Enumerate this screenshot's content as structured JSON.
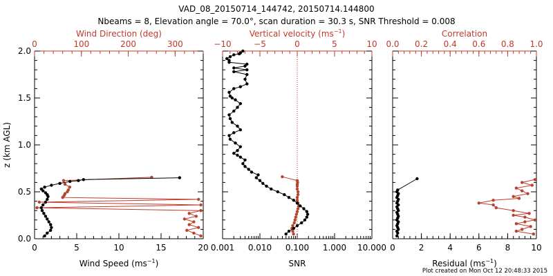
{
  "header": {
    "title": "VAD_08_20150714_144742, 20150714.144800",
    "subtitle": "Nbeams = 8, Elevation angle = 70.0°, scan duration = 30.3 s, SNR Threshold = 0.008"
  },
  "footer": {
    "note": "Plot created on Mon Oct 12 20:48:33 2015"
  },
  "colors": {
    "black": "#000000",
    "red": "#c0392b",
    "marker_red": "#b5452f"
  },
  "chart_data": [
    {
      "id": "panel-wind",
      "type": "line",
      "ylabel": "z (km AGL)",
      "ylim": [
        0,
        2.0
      ],
      "yticks": [
        0.0,
        0.5,
        1.0,
        1.5,
        2.0
      ],
      "yticklabels": [
        "0.0",
        "0.5",
        "1.0",
        "1.5",
        "2.0"
      ],
      "xlabel_prefix": "Wind Speed (ms",
      "xlabel_sup": "−1",
      "xlabel_suffix": ")",
      "xlim": [
        0,
        20
      ],
      "xticks": [
        0,
        5,
        10,
        15,
        20
      ],
      "xticklabels": [
        "0",
        "5",
        "10",
        "15",
        "20"
      ],
      "x2label": "Wind Direction (deg)",
      "x2lim": [
        0,
        360
      ],
      "x2ticks": [
        0,
        100,
        200,
        300
      ],
      "x2ticklabels": [
        "0",
        "100",
        "200",
        "300"
      ],
      "series": [
        {
          "name": "Wind Speed",
          "axis": "bottom",
          "color": "#000000",
          "x": [
            1.2,
            1.5,
            1.9,
            2.0,
            1.9,
            1.7,
            1.5,
            1.3,
            1.1,
            0.9,
            0.8,
            1.0,
            1.3,
            1.5,
            1.6,
            1.5,
            1.3,
            1.0,
            0.8,
            1.2,
            2.0,
            3.0,
            4.2,
            5.2,
            5.8,
            17.2
          ],
          "y": [
            0.03,
            0.06,
            0.09,
            0.12,
            0.15,
            0.18,
            0.21,
            0.24,
            0.27,
            0.3,
            0.33,
            0.36,
            0.39,
            0.42,
            0.45,
            0.47,
            0.49,
            0.51,
            0.53,
            0.55,
            0.57,
            0.59,
            0.61,
            0.62,
            0.63,
            0.65
          ]
        },
        {
          "name": "Wind Direction",
          "axis": "top",
          "color": "#c0392b",
          "x": [
            355,
            340,
            325,
            350,
            330,
            340,
            320,
            345,
            330,
            355,
            5,
            355,
            10,
            350,
            60,
            63,
            65,
            70,
            72,
            75,
            65,
            62,
            250
          ],
          "y": [
            0.03,
            0.06,
            0.09,
            0.12,
            0.15,
            0.18,
            0.21,
            0.24,
            0.27,
            0.3,
            0.33,
            0.36,
            0.39,
            0.42,
            0.44,
            0.46,
            0.48,
            0.5,
            0.52,
            0.55,
            0.58,
            0.62,
            0.655
          ]
        }
      ]
    },
    {
      "id": "panel-snr",
      "type": "line",
      "xscale": "log",
      "ylim": [
        0,
        2.0
      ],
      "yticks": [
        0.0,
        0.5,
        1.0,
        1.5,
        2.0
      ],
      "xlabel_prefix": "SNR",
      "xlabel_sup": "",
      "xlabel_suffix": "",
      "xlim": [
        0.001,
        10
      ],
      "xticks": [
        0.001,
        0.01,
        0.1,
        1,
        10
      ],
      "xticklabels": [
        "0.001",
        "0.010",
        "0.100",
        "1.000",
        "10.000"
      ],
      "x2label_prefix": "Vertical velocity (ms",
      "x2label_sup": "−1",
      "x2label_suffix": ")",
      "x2lim": [
        -10,
        10
      ],
      "x2ticks": [
        -10,
        -5,
        0,
        5,
        10
      ],
      "x2ticklabels": [
        "−10",
        "−5",
        "0",
        "5",
        "10"
      ],
      "reference_line": {
        "axis": "top",
        "value": 0
      },
      "series": [
        {
          "name": "SNR",
          "axis": "bottom",
          "color": "#000000",
          "x": [
            0.05,
            0.06,
            0.08,
            0.1,
            0.13,
            0.16,
            0.18,
            0.19,
            0.18,
            0.15,
            0.12,
            0.1,
            0.08,
            0.06,
            0.045,
            0.03,
            0.02,
            0.015,
            0.012,
            0.01,
            0.008,
            0.009,
            0.006,
            0.005,
            0.004,
            0.0035,
            0.004,
            0.003,
            0.0025,
            0.002,
            0.0025,
            0.003,
            0.0022,
            0.0016,
            0.0015,
            0.002,
            0.003,
            0.0025,
            0.0018,
            0.0016,
            0.0015,
            0.002,
            0.0025,
            0.003,
            0.0022,
            0.0018,
            0.0016,
            0.0015,
            0.002,
            0.003,
            0.0045,
            0.004,
            0.0045,
            0.002,
            0.0045,
            0.002,
            0.004,
            0.0045,
            0.0015,
            0.0015,
            0.0013,
            0.0016,
            0.002,
            0.0028,
            0.003,
            0.0035
          ],
          "y": [
            0.05,
            0.08,
            0.11,
            0.14,
            0.17,
            0.2,
            0.23,
            0.26,
            0.29,
            0.32,
            0.35,
            0.38,
            0.41,
            0.44,
            0.47,
            0.5,
            0.53,
            0.56,
            0.59,
            0.62,
            0.65,
            0.68,
            0.71,
            0.74,
            0.77,
            0.8,
            0.84,
            0.87,
            0.89,
            0.91,
            0.94,
            0.98,
            1.02,
            1.06,
            1.1,
            1.13,
            1.16,
            1.2,
            1.24,
            1.28,
            1.32,
            1.36,
            1.4,
            1.44,
            1.48,
            1.5,
            1.52,
            1.56,
            1.6,
            1.62,
            1.65,
            1.7,
            1.75,
            1.78,
            1.8,
            1.82,
            1.84,
            1.86,
            1.88,
            1.9,
            1.92,
            1.94,
            1.96,
            1.97,
            1.98,
            2.0
          ]
        },
        {
          "name": "Vertical velocity",
          "axis": "top",
          "color": "#c0392b",
          "x": [
            -0.5,
            -0.6,
            -0.7,
            -0.6,
            -0.4,
            -0.3,
            -0.2,
            -0.1,
            0.0,
            0.1,
            0.2,
            0.1,
            0.0,
            0.0,
            0.1,
            0.1,
            0.0,
            0.0,
            0.0,
            0.05,
            0.0,
            -2.0
          ],
          "y": [
            0.05,
            0.08,
            0.11,
            0.14,
            0.17,
            0.2,
            0.23,
            0.26,
            0.29,
            0.32,
            0.35,
            0.38,
            0.41,
            0.44,
            0.47,
            0.5,
            0.53,
            0.56,
            0.58,
            0.6,
            0.62,
            0.66
          ]
        }
      ]
    },
    {
      "id": "panel-residual",
      "type": "line",
      "ylim": [
        0,
        2.0
      ],
      "yticks": [
        0.0,
        0.5,
        1.0,
        1.5,
        2.0
      ],
      "xlabel_prefix": "Residual (ms",
      "xlabel_sup": "−1",
      "xlabel_suffix": ")",
      "xlim": [
        0,
        10
      ],
      "xticks": [
        0,
        2,
        4,
        6,
        8,
        10
      ],
      "xticklabels": [
        "0",
        "2",
        "4",
        "6",
        "8",
        "10"
      ],
      "x2label": "Correlation",
      "x2lim": [
        0,
        1.0
      ],
      "x2ticks": [
        0,
        0.2,
        0.4,
        0.6,
        0.8,
        1.0
      ],
      "x2ticklabels": [
        "0.0",
        "0.2",
        "0.4",
        "0.6",
        "0.8",
        "1.0"
      ],
      "series": [
        {
          "name": "Residual",
          "axis": "bottom",
          "color": "#000000",
          "x": [
            0.3,
            0.35,
            0.3,
            0.4,
            0.35,
            0.3,
            0.35,
            0.4,
            0.3,
            0.35,
            0.4,
            0.35,
            0.3,
            0.4,
            0.35,
            0.3,
            0.4,
            0.3,
            0.35,
            0.4,
            0.3,
            0.35,
            0.4,
            0.3,
            0.35,
            1.7
          ],
          "y": [
            0.03,
            0.06,
            0.08,
            0.1,
            0.12,
            0.14,
            0.16,
            0.18,
            0.2,
            0.22,
            0.24,
            0.26,
            0.28,
            0.3,
            0.32,
            0.34,
            0.36,
            0.38,
            0.4,
            0.42,
            0.44,
            0.46,
            0.48,
            0.5,
            0.52,
            0.64
          ]
        },
        {
          "name": "Correlation",
          "axis": "top",
          "color": "#c0392b",
          "x": [
            0.98,
            0.86,
            0.9,
            0.96,
            0.86,
            0.92,
            0.99,
            0.92,
            0.84,
            0.95,
            0.84,
            0.72,
            0.7,
            0.6,
            0.7,
            0.88,
            0.84,
            0.94,
            0.9,
            0.86,
            0.97,
            0.9,
            0.99
          ],
          "y": [
            0.05,
            0.08,
            0.1,
            0.13,
            0.16,
            0.18,
            0.2,
            0.23,
            0.25,
            0.27,
            0.3,
            0.33,
            0.36,
            0.38,
            0.41,
            0.43,
            0.45,
            0.48,
            0.51,
            0.54,
            0.57,
            0.6,
            0.63
          ]
        }
      ]
    }
  ]
}
